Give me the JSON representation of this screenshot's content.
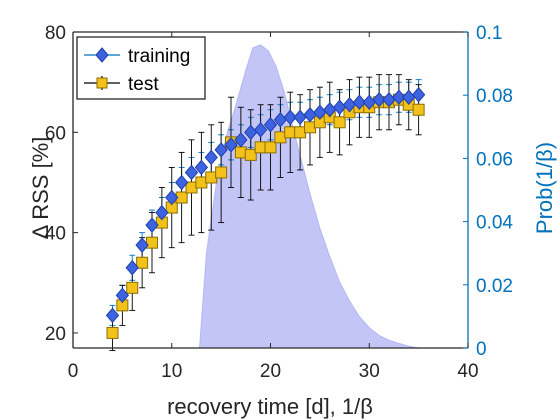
{
  "chart_data": {
    "type": "scatter",
    "xlabel": "recovery time [d], 1/β",
    "ylabel": "Δ RSS [%]",
    "ylabel_right": "Prob(1/β)",
    "xlim": [
      0,
      40
    ],
    "ylim": [
      17,
      80
    ],
    "ylim_right": [
      0,
      0.1
    ],
    "x_ticks": [
      0,
      10,
      20,
      30,
      40
    ],
    "y_ticks": [
      20,
      40,
      60,
      80
    ],
    "y_ticks_right": [
      0,
      0.02,
      0.04,
      0.06,
      0.08,
      0.1
    ],
    "x_tick_labels": [
      "0",
      "10",
      "20",
      "30",
      "40"
    ],
    "y_tick_labels": [
      "20",
      "40",
      "60",
      "80"
    ],
    "y_tick_labels_right": [
      "0",
      "0.02",
      "0.04",
      "0.06",
      "0.08",
      "0.1"
    ],
    "legend": {
      "position": "top-left",
      "entries": [
        "training",
        "test"
      ]
    },
    "series": [
      {
        "name": "training",
        "marker": "diamond",
        "color": "#3D63E0",
        "x": [
          4,
          5,
          6,
          7,
          8,
          9,
          10,
          11,
          12,
          13,
          14,
          15,
          16,
          17,
          18,
          19,
          20,
          21,
          22,
          23,
          24,
          25,
          26,
          27,
          28,
          29,
          30,
          31,
          32,
          33,
          34,
          35
        ],
        "y": [
          23.5,
          27.5,
          33,
          37.5,
          41.5,
          44,
          47,
          50,
          52,
          53,
          55,
          56.5,
          57.5,
          58.5,
          60,
          60.5,
          61.5,
          62.5,
          63,
          63,
          63.5,
          64,
          64.5,
          65,
          65.5,
          66,
          66,
          66.5,
          66.5,
          67,
          67,
          67.5
        ],
        "err": [
          2,
          2,
          2.5,
          2.5,
          3,
          3,
          3,
          3,
          3,
          3,
          3,
          3,
          3,
          3,
          3,
          3,
          3,
          3,
          3,
          3,
          3,
          3,
          3,
          3,
          3,
          3,
          3,
          3,
          3,
          3,
          3,
          3
        ]
      },
      {
        "name": "test",
        "marker": "square",
        "color": "#F2C21A",
        "x": [
          4,
          5,
          6,
          7,
          8,
          9,
          10,
          11,
          12,
          13,
          14,
          15,
          16,
          17,
          18,
          19,
          20,
          21,
          22,
          23,
          24,
          25,
          26,
          27,
          28,
          29,
          30,
          31,
          32,
          33,
          34,
          35
        ],
        "y": [
          20,
          25.5,
          29,
          34,
          38,
          42,
          45,
          47,
          49,
          50,
          51,
          52,
          58,
          56,
          55.5,
          57,
          57,
          59,
          60,
          60,
          61,
          62,
          63,
          62,
          64,
          65,
          65,
          66,
          66,
          66.5,
          65.5,
          64.5
        ],
        "err": [
          3.5,
          4,
          4.5,
          5,
          6,
          7,
          8,
          9,
          9.5,
          10,
          10.5,
          10,
          9,
          9,
          9,
          8.5,
          8.5,
          8,
          8,
          7.5,
          7.5,
          7,
          7,
          6.5,
          6.5,
          6,
          6,
          5.5,
          5.5,
          5,
          5,
          5
        ]
      }
    ],
    "area": {
      "name": "Prob(1/β)",
      "axis": "right",
      "color": "#7B7EEB",
      "x": [
        12.8,
        13.5,
        14.5,
        15.5,
        16.5,
        17.5,
        18.2,
        19,
        19.8,
        20.6,
        21.4,
        22.2,
        23,
        24,
        25,
        26,
        27,
        28,
        29,
        30,
        31,
        32,
        33,
        34,
        35
      ],
      "y": [
        0,
        0.03,
        0.052,
        0.067,
        0.077,
        0.088,
        0.095,
        0.096,
        0.094,
        0.089,
        0.081,
        0.071,
        0.061,
        0.049,
        0.038,
        0.029,
        0.021,
        0.015,
        0.01,
        0.0065,
        0.004,
        0.0025,
        0.0015,
        0.0006,
        0
      ]
    }
  }
}
